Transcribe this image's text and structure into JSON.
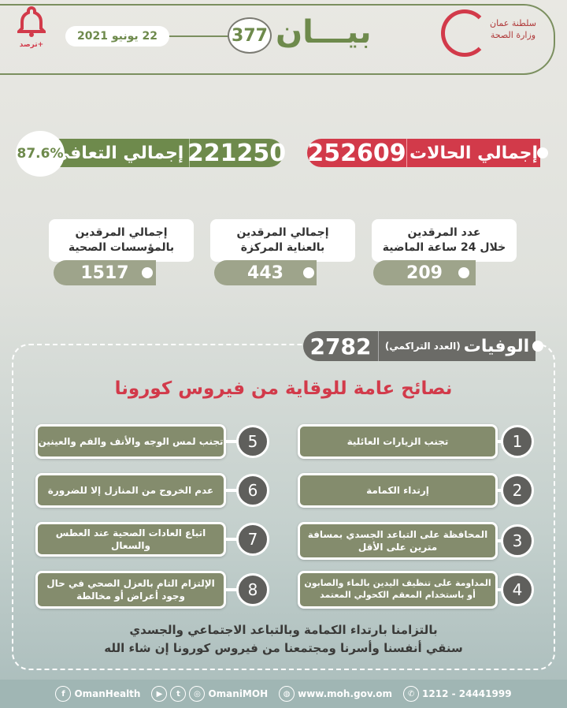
{
  "header": {
    "title": "بيـــان",
    "number": "377",
    "date": "22 يونيو 2021",
    "app_label": "ترصد+",
    "logo_text": [
      "سلطنة عمان",
      "وزارة الصحة"
    ]
  },
  "cases": {
    "label": "إجمالي الحالات",
    "value": "252609"
  },
  "recovery": {
    "label": "إجمالي التعافي",
    "value": "221250",
    "percent": "87.6%"
  },
  "admissions": [
    {
      "label_line1": "عدد المرقدين",
      "label_line2": "خلال 24 ساعة الماضية",
      "value": "209"
    },
    {
      "label_line1": "إجمالي المرقدين",
      "label_line2": "بالعناية المركزة",
      "value": "443"
    },
    {
      "label_line1": "إجمالي المرقدين",
      "label_line2": "بالمؤسسات الصحية",
      "value": "1517"
    }
  ],
  "deaths": {
    "label": "الوفيات",
    "sublabel": "(العدد التراكمي)",
    "value": "2782"
  },
  "advice": {
    "title": "نصائح عامة للوقاية من فيروس كورونا",
    "items": [
      {
        "n": "1",
        "text": "تجنب الزيارات العائلية"
      },
      {
        "n": "2",
        "text": "إرتداء الكمامة"
      },
      {
        "n": "3",
        "text": "المحافظة على التباعد الجسدي بمسافة مترين على الأقل"
      },
      {
        "n": "4",
        "text": "المداومة على تنظيف اليدين بالماء والصابون أو باستخدام المعقم الكحولي المعتمد"
      },
      {
        "n": "5",
        "text": "تجنب لمس الوجه والأنف والفم والعينين"
      },
      {
        "n": "6",
        "text": "عدم الخروج من المنازل إلا للضرورة"
      },
      {
        "n": "7",
        "text": "اتباع العادات الصحية عند العطس والسعال"
      },
      {
        "n": "8",
        "text": "الإلتزام التام بالعزل الصحي في حال وجود أعراض أو مخالطة"
      }
    ]
  },
  "closing": {
    "line1": "بالتزامنا بارتداء الكمامة وبالتباعد الاجتماعي والجسدي",
    "line2": "سنقي أنفسنا وأسرنا ومجتمعنا من فيروس كورونا إن شاء الله"
  },
  "footer": {
    "facebook": "OmanHealth",
    "social": "OmaniMOH",
    "website": "www.moh.gov.om",
    "phone": "1212 - 24441999"
  },
  "colors": {
    "green": "#6e8a4c",
    "red": "#d23a4a",
    "gray": "#6b6b67",
    "tip": "#848c6d"
  }
}
